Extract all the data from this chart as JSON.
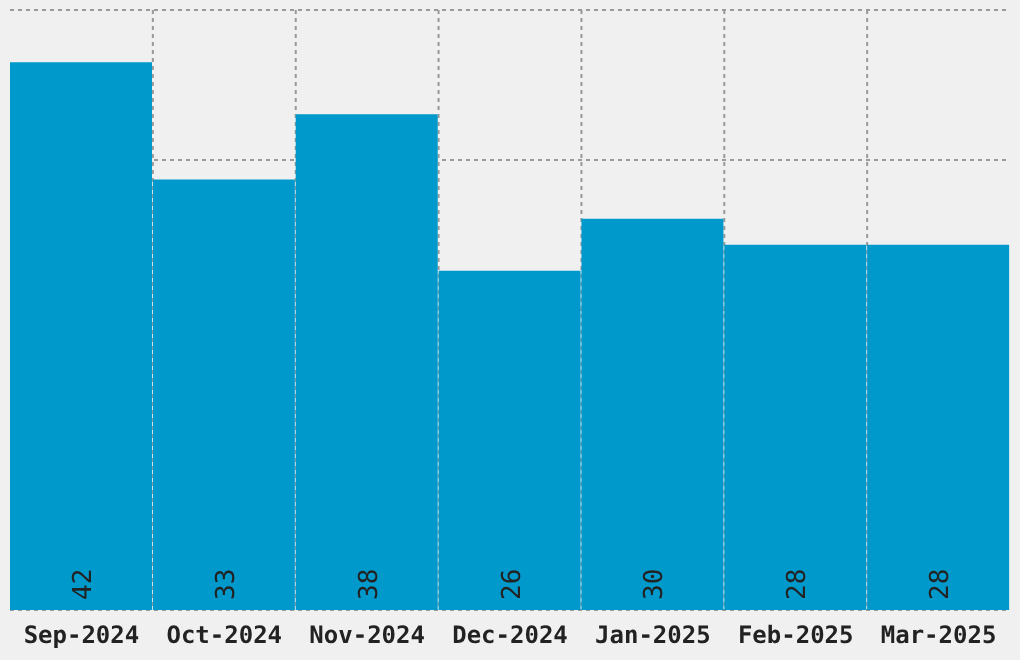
{
  "chart_data": {
    "type": "bar",
    "categories": [
      "Sep-2024",
      "Oct-2024",
      "Nov-2024",
      "Dec-2024",
      "Jan-2025",
      "Feb-2025",
      "Mar-2025"
    ],
    "values": [
      42,
      33,
      38,
      26,
      30,
      28,
      28
    ],
    "color": "#0099cc",
    "data_labels": true,
    "grid": true,
    "tick_labels": "x",
    "ylim": [
      0,
      46
    ],
    "yticks": [
      {
        "value": 0,
        "label": null
      },
      {
        "value": 11.5,
        "label": null
      },
      {
        "value": 23,
        "label": null
      },
      {
        "value": 34.5,
        "label": null
      },
      {
        "value": 46,
        "label": null
      }
    ]
  }
}
